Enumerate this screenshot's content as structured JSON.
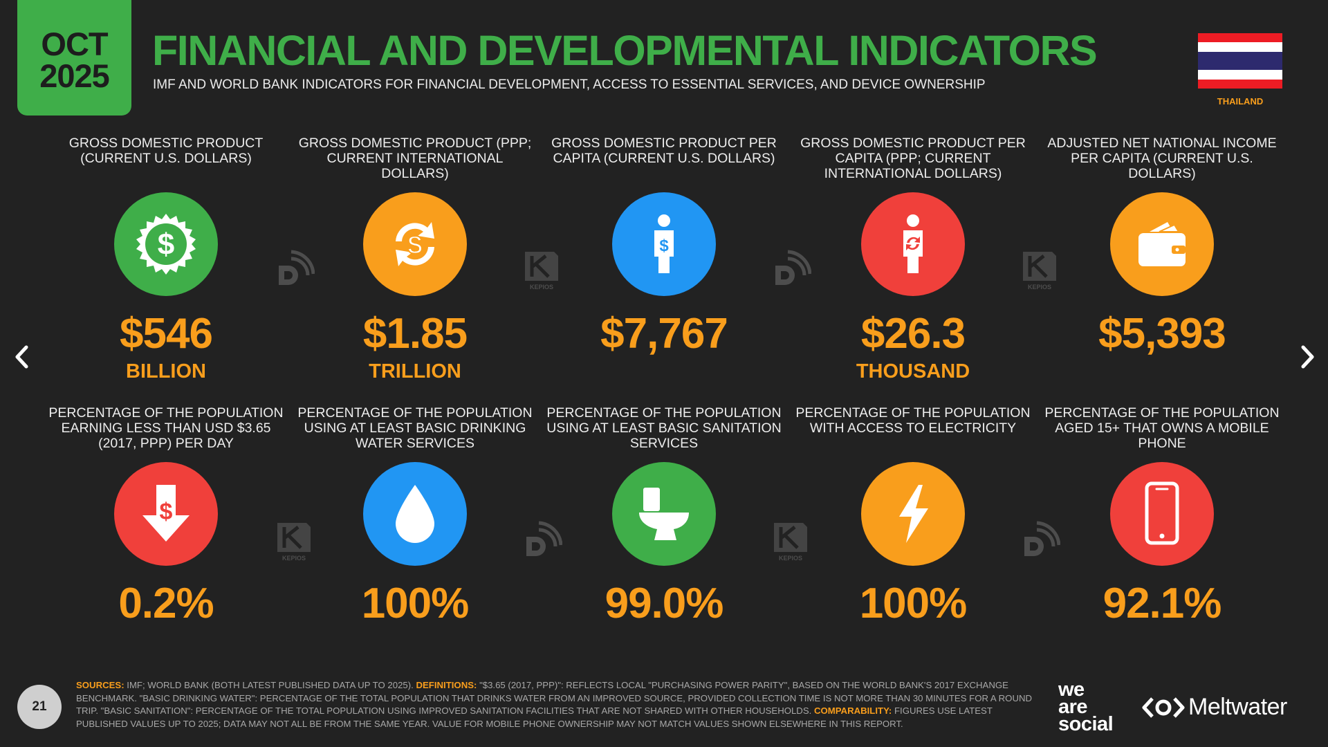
{
  "header": {
    "date_line1": "OCT",
    "date_line2": "2025",
    "title": "FINANCIAL AND DEVELOPMENTAL INDICATORS",
    "subtitle": "IMF AND WORLD BANK INDICATORS FOR FINANCIAL DEVELOPMENT, ACCESS TO ESSENTIAL SERVICES, AND DEVICE OWNERSHIP",
    "country": "THAILAND"
  },
  "colors": {
    "green": "#3fae49",
    "orange": "#f99e1c",
    "blue": "#2196f3",
    "red": "#f0403b",
    "flag_red": "#ed1c24",
    "flag_white": "#ffffff",
    "flag_blue": "#2d2a6e"
  },
  "indicators_row1": [
    {
      "label": "GROSS DOMESTIC PRODUCT (CURRENT U.S. DOLLARS)",
      "value": "$546",
      "unit": "BILLION",
      "icon": "dollar-badge-icon",
      "color": "#3fae49"
    },
    {
      "label": "GROSS DOMESTIC PRODUCT (PPP; CURRENT INTERNATIONAL DOLLARS)",
      "value": "$1.85",
      "unit": "TRILLION",
      "icon": "currency-exchange-icon",
      "color": "#f99e1c"
    },
    {
      "label": "GROSS DOMESTIC PRODUCT PER CAPITA (CURRENT U.S. DOLLARS)",
      "value": "$7,767",
      "unit": "",
      "icon": "person-dollar-icon",
      "color": "#2196f3"
    },
    {
      "label": "GROSS DOMESTIC PRODUCT PER CAPITA (PPP; CURRENT INTERNATIONAL DOLLARS)",
      "value": "$26.3",
      "unit": "THOUSAND",
      "icon": "person-exchange-icon",
      "color": "#f0403b"
    },
    {
      "label": "ADJUSTED NET NATIONAL INCOME PER CAPITA (CURRENT U.S. DOLLARS)",
      "value": "$5,393",
      "unit": "",
      "icon": "wallet-icon",
      "color": "#f99e1c"
    }
  ],
  "indicators_row2": [
    {
      "label": "PERCENTAGE OF THE POPULATION EARNING LESS THAN USD $3.65 (2017, PPP) PER DAY",
      "value": "0.2%",
      "icon": "dollar-down-arrow-icon",
      "color": "#f0403b"
    },
    {
      "label": "PERCENTAGE OF THE POPULATION USING AT LEAST BASIC DRINKING WATER SERVICES",
      "value": "100%",
      "icon": "water-drop-icon",
      "color": "#2196f3"
    },
    {
      "label": "PERCENTAGE OF THE POPULATION USING AT LEAST BASIC SANITATION SERVICES",
      "value": "99.0%",
      "icon": "toilet-icon",
      "color": "#3fae49"
    },
    {
      "label": "PERCENTAGE OF THE POPULATION WITH ACCESS TO ELECTRICITY",
      "value": "100%",
      "icon": "lightning-icon",
      "color": "#f99e1c"
    },
    {
      "label": "PERCENTAGE OF THE POPULATION AGED 15+ THAT OWNS A MOBILE PHONE",
      "value": "92.1%",
      "icon": "mobile-phone-icon",
      "color": "#f0403b"
    }
  ],
  "watermarks": {
    "kepios_text": "KEPIOS"
  },
  "footer": {
    "page_number": "21",
    "sources_label": "SOURCES:",
    "sources_text": "IMF; WORLD BANK (BOTH LATEST PUBLISHED DATA UP TO 2025).",
    "definitions_label": "DEFINITIONS:",
    "definitions_text": "\"$3.65 (2017, PPP)\": REFLECTS LOCAL \"PURCHASING POWER PARITY\", BASED ON THE WORLD BANK'S 2017 EXCHANGE BENCHMARK. \"BASIC DRINKING WATER\": PERCENTAGE OF THE TOTAL POPULATION THAT DRINKS WATER FROM AN IMPROVED SOURCE, PROVIDED COLLECTION TIME IS NOT MORE THAN 30 MINUTES FOR A ROUND TRIP. \"BASIC SANITATION\": PERCENTAGE OF THE TOTAL POPULATION USING IMPROVED SANITATION FACILITIES THAT ARE NOT SHARED WITH OTHER HOUSEHOLDS.",
    "comparability_label": "COMPARABILITY:",
    "comparability_text": "FIGURES USE LATEST PUBLISHED VALUES UP TO 2025; DATA MAY NOT ALL BE FROM THE SAME YEAR. VALUE FOR MOBILE PHONE OWNERSHIP MAY NOT MATCH VALUES SHOWN ELSEWHERE IN THIS REPORT.",
    "brand1_line1": "we",
    "brand1_line2": "are",
    "brand1_line3": "social",
    "brand2": "Meltwater"
  }
}
